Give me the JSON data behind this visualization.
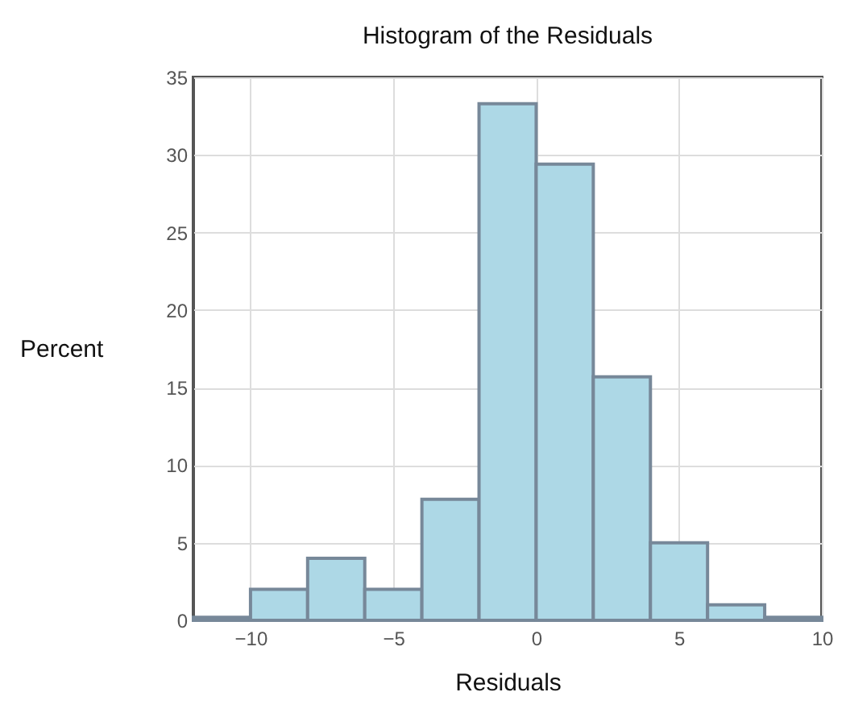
{
  "chart_data": {
    "type": "histogram",
    "title": "Histogram of the Residuals",
    "xlabel": "Residuals",
    "ylabel": "Percent",
    "bins": [
      -12,
      -10,
      -8,
      -6,
      -4,
      -2,
      0,
      2,
      4,
      6,
      8,
      10
    ],
    "values": [
      0.2,
      2,
      4,
      2,
      7.8,
      33.3,
      29.4,
      15.7,
      5,
      1,
      0.2
    ],
    "color": "#add8e6",
    "xlim": [
      -12,
      10
    ],
    "xticks": [
      -10,
      -5,
      0,
      5,
      10
    ],
    "ylim": [
      0,
      35
    ],
    "yticks": [
      0,
      5,
      10,
      15,
      20,
      25,
      30,
      35
    ],
    "grid": true
  }
}
